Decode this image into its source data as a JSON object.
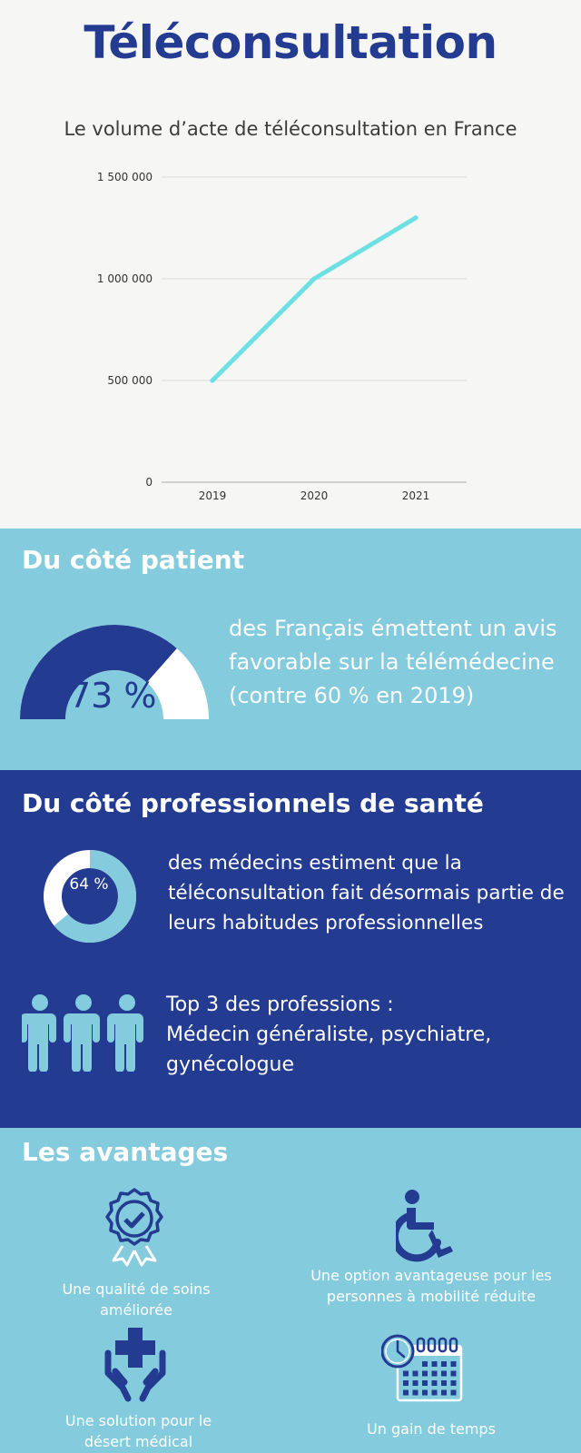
{
  "header": {
    "title": "Téléconsultation"
  },
  "chart_data": {
    "type": "line",
    "title": "Le volume d’acte de téléconsultation en France",
    "categories": [
      "2019",
      "2020",
      "2021"
    ],
    "series": [
      {
        "values": [
          500000,
          1000000,
          1300000
        ]
      }
    ],
    "ylim": [
      0,
      1500000
    ],
    "yticks": [
      0,
      500000,
      1000000,
      1500000
    ],
    "ytick_labels": [
      "0",
      "500 000",
      "1 000 000",
      "1 500 000"
    ],
    "grid": true,
    "line_color": "#6edfe3"
  },
  "patient": {
    "heading": "Du côté patient",
    "gauge_percent": 73,
    "gauge_label": "73 %",
    "text": "des Français émettent un avis favorable sur la télémédecine (contre 60 % en 2019)"
  },
  "professionals": {
    "heading": "Du côté professionnels de santé",
    "donut_percent": 64,
    "donut_label": "64 %",
    "text": "des médecins estiment que la téléconsultation fait désormais partie de leurs habitudes professionnelles",
    "top3_title": "Top 3 des professions :",
    "top3_list": "Médecin généraliste, psychiatre, gynécologue"
  },
  "advantages": {
    "heading": "Les avantages",
    "items": [
      {
        "label": "Une qualité de soins améliorée",
        "icon": "award-badge-icon"
      },
      {
        "label": "Une option avantageuse pour les personnes à mobilité réduite",
        "icon": "wheelchair-icon"
      },
      {
        "label": "Une solution pour le désert médical",
        "icon": "hands-medical-cross-icon"
      },
      {
        "label": "Un gain de temps",
        "icon": "clock-calendar-icon"
      }
    ]
  },
  "colors": {
    "navy": "#233b91",
    "light_blue": "#84cbdd",
    "background": "#f6f7f4",
    "accent_line": "#6edfe3"
  }
}
